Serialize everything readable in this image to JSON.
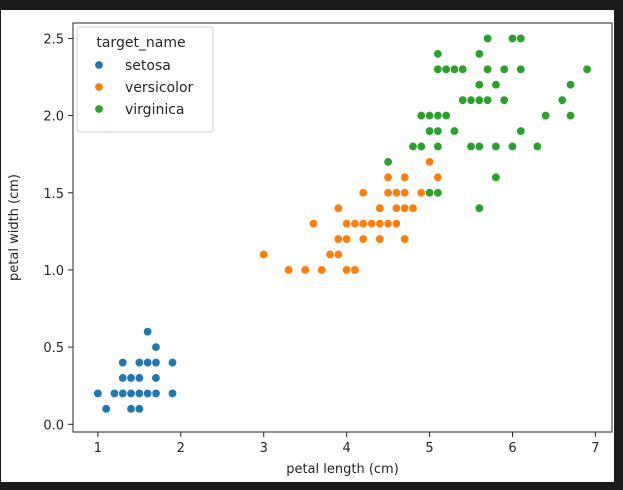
{
  "chart_data": {
    "type": "scatter",
    "title": "",
    "xlabel": "petal length (cm)",
    "ylabel": "petal width (cm)",
    "xlim": [
      0.7,
      7.2
    ],
    "ylim": [
      -0.05,
      2.6
    ],
    "xticks": [
      1,
      2,
      3,
      4,
      5,
      6,
      7
    ],
    "yticks": [
      0.0,
      0.5,
      1.0,
      1.5,
      2.0,
      2.5
    ],
    "xtick_labels": [
      "1",
      "2",
      "3",
      "4",
      "5",
      "6",
      "7"
    ],
    "ytick_labels": [
      "0.0",
      "0.5",
      "1.0",
      "1.5",
      "2.0",
      "2.5"
    ],
    "grid": false,
    "legend": {
      "title": "target_name",
      "placement": "top-left"
    },
    "series": [
      {
        "name": "setosa",
        "color": "#1f77b4",
        "points": [
          [
            1.4,
            0.2
          ],
          [
            1.4,
            0.2
          ],
          [
            1.3,
            0.2
          ],
          [
            1.5,
            0.2
          ],
          [
            1.4,
            0.2
          ],
          [
            1.7,
            0.4
          ],
          [
            1.4,
            0.3
          ],
          [
            1.5,
            0.2
          ],
          [
            1.4,
            0.2
          ],
          [
            1.5,
            0.1
          ],
          [
            1.5,
            0.2
          ],
          [
            1.6,
            0.2
          ],
          [
            1.4,
            0.1
          ],
          [
            1.1,
            0.1
          ],
          [
            1.2,
            0.2
          ],
          [
            1.5,
            0.4
          ],
          [
            1.3,
            0.4
          ],
          [
            1.4,
            0.3
          ],
          [
            1.7,
            0.3
          ],
          [
            1.5,
            0.3
          ],
          [
            1.7,
            0.2
          ],
          [
            1.5,
            0.4
          ],
          [
            1.0,
            0.2
          ],
          [
            1.7,
            0.5
          ],
          [
            1.9,
            0.2
          ],
          [
            1.6,
            0.2
          ],
          [
            1.6,
            0.4
          ],
          [
            1.5,
            0.2
          ],
          [
            1.4,
            0.2
          ],
          [
            1.6,
            0.2
          ],
          [
            1.6,
            0.2
          ],
          [
            1.5,
            0.4
          ],
          [
            1.5,
            0.1
          ],
          [
            1.4,
            0.2
          ],
          [
            1.5,
            0.2
          ],
          [
            1.2,
            0.2
          ],
          [
            1.3,
            0.2
          ],
          [
            1.4,
            0.1
          ],
          [
            1.3,
            0.2
          ],
          [
            1.5,
            0.2
          ],
          [
            1.3,
            0.3
          ],
          [
            1.3,
            0.3
          ],
          [
            1.3,
            0.2
          ],
          [
            1.6,
            0.6
          ],
          [
            1.9,
            0.4
          ],
          [
            1.4,
            0.3
          ],
          [
            1.6,
            0.2
          ],
          [
            1.4,
            0.2
          ],
          [
            1.5,
            0.2
          ],
          [
            1.4,
            0.2
          ]
        ]
      },
      {
        "name": "versicolor",
        "color": "#ff7f0e",
        "points": [
          [
            4.7,
            1.4
          ],
          [
            4.5,
            1.5
          ],
          [
            4.9,
            1.5
          ],
          [
            4.0,
            1.3
          ],
          [
            4.6,
            1.5
          ],
          [
            4.5,
            1.3
          ],
          [
            4.7,
            1.6
          ],
          [
            3.3,
            1.0
          ],
          [
            4.6,
            1.3
          ],
          [
            3.9,
            1.4
          ],
          [
            3.5,
            1.0
          ],
          [
            4.2,
            1.5
          ],
          [
            4.0,
            1.0
          ],
          [
            4.7,
            1.4
          ],
          [
            3.6,
            1.3
          ],
          [
            4.4,
            1.4
          ],
          [
            4.5,
            1.5
          ],
          [
            4.1,
            1.0
          ],
          [
            4.5,
            1.5
          ],
          [
            3.9,
            1.1
          ],
          [
            4.8,
            1.8
          ],
          [
            4.0,
            1.3
          ],
          [
            4.9,
            1.5
          ],
          [
            4.7,
            1.2
          ],
          [
            4.3,
            1.3
          ],
          [
            4.4,
            1.4
          ],
          [
            4.8,
            1.4
          ],
          [
            5.0,
            1.7
          ],
          [
            4.5,
            1.5
          ],
          [
            3.5,
            1.0
          ],
          [
            3.8,
            1.1
          ],
          [
            3.7,
            1.0
          ],
          [
            3.9,
            1.2
          ],
          [
            5.1,
            1.6
          ],
          [
            4.5,
            1.5
          ],
          [
            4.5,
            1.6
          ],
          [
            4.7,
            1.5
          ],
          [
            4.4,
            1.3
          ],
          [
            4.1,
            1.3
          ],
          [
            4.0,
            1.3
          ],
          [
            4.4,
            1.2
          ],
          [
            4.6,
            1.4
          ],
          [
            4.0,
            1.2
          ],
          [
            3.3,
            1.0
          ],
          [
            4.2,
            1.3
          ],
          [
            4.2,
            1.2
          ],
          [
            4.2,
            1.3
          ],
          [
            4.3,
            1.3
          ],
          [
            3.0,
            1.1
          ],
          [
            4.1,
            1.3
          ]
        ]
      },
      {
        "name": "virginica",
        "color": "#2ca02c",
        "points": [
          [
            6.0,
            2.5
          ],
          [
            5.1,
            1.9
          ],
          [
            5.9,
            2.1
          ],
          [
            5.6,
            1.8
          ],
          [
            5.8,
            2.2
          ],
          [
            6.6,
            2.1
          ],
          [
            4.5,
            1.7
          ],
          [
            6.3,
            1.8
          ],
          [
            5.8,
            1.8
          ],
          [
            6.1,
            2.5
          ],
          [
            5.1,
            2.0
          ],
          [
            5.3,
            1.9
          ],
          [
            5.5,
            2.1
          ],
          [
            5.0,
            2.0
          ],
          [
            5.1,
            2.4
          ],
          [
            5.3,
            2.3
          ],
          [
            5.5,
            1.8
          ],
          [
            6.7,
            2.2
          ],
          [
            6.9,
            2.3
          ],
          [
            5.0,
            1.5
          ],
          [
            5.7,
            2.3
          ],
          [
            4.9,
            2.0
          ],
          [
            6.7,
            2.0
          ],
          [
            4.9,
            1.8
          ],
          [
            5.7,
            2.1
          ],
          [
            6.0,
            1.8
          ],
          [
            4.8,
            1.8
          ],
          [
            4.9,
            1.8
          ],
          [
            5.6,
            2.1
          ],
          [
            5.8,
            1.6
          ],
          [
            6.1,
            1.9
          ],
          [
            6.4,
            2.0
          ],
          [
            5.6,
            2.2
          ],
          [
            5.1,
            1.5
          ],
          [
            5.6,
            1.4
          ],
          [
            6.1,
            2.3
          ],
          [
            5.6,
            2.4
          ],
          [
            5.5,
            1.8
          ],
          [
            4.8,
            1.8
          ],
          [
            5.4,
            2.1
          ],
          [
            5.6,
            2.4
          ],
          [
            5.1,
            2.3
          ],
          [
            5.1,
            1.9
          ],
          [
            5.9,
            2.3
          ],
          [
            5.7,
            2.5
          ],
          [
            5.2,
            2.3
          ],
          [
            5.0,
            1.9
          ],
          [
            5.2,
            2.0
          ],
          [
            5.4,
            2.3
          ],
          [
            5.1,
            1.8
          ]
        ]
      }
    ]
  }
}
